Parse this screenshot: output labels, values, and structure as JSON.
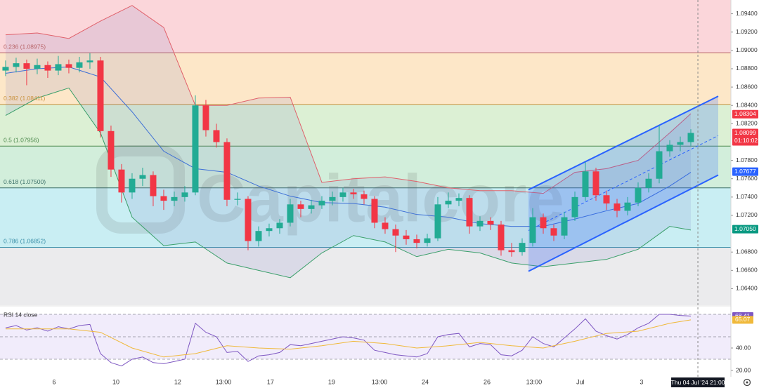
{
  "chart_data": [
    {
      "type": "candlestick",
      "watermark": "Capitalcore",
      "up_color": "#22ab94",
      "down_color": "#f23645",
      "xlim": [
        -0.53,
        68.8
      ],
      "ylim": [
        1.0622,
        1.0955
      ],
      "yticks": [
        {
          "value": 1.094,
          "label": "1.09400"
        },
        {
          "value": 1.092,
          "label": "1.09200"
        },
        {
          "value": 1.09,
          "label": "1.09000"
        },
        {
          "value": 1.088,
          "label": "1.08800"
        },
        {
          "value": 1.086,
          "label": "1.08600"
        },
        {
          "value": 1.084,
          "label": "1.08400"
        },
        {
          "value": 1.082,
          "label": "1.08200"
        },
        {
          "value": 1.078,
          "label": "1.07800"
        },
        {
          "value": 1.076,
          "label": "1.07600"
        },
        {
          "value": 1.074,
          "label": "1.07400"
        },
        {
          "value": 1.072,
          "label": "1.07200"
        },
        {
          "value": 1.068,
          "label": "1.06800"
        },
        {
          "value": 1.066,
          "label": "1.06600"
        },
        {
          "value": 1.064,
          "label": "1.06400"
        }
      ],
      "xticks": [
        {
          "value": 4.6,
          "label": "6"
        },
        {
          "value": 10.47,
          "label": "10"
        },
        {
          "value": 16.33,
          "label": "12"
        },
        {
          "value": 20.67,
          "label": "13:00"
        },
        {
          "value": 25.13,
          "label": "17"
        },
        {
          "value": 30.93,
          "label": "19"
        },
        {
          "value": 35.47,
          "label": "13:00"
        },
        {
          "value": 39.8,
          "label": "24"
        },
        {
          "value": 45.67,
          "label": "26"
        },
        {
          "value": 50.13,
          "label": "13:00"
        },
        {
          "value": 54.53,
          "label": "Jul"
        },
        {
          "value": 60.33,
          "label": "3"
        }
      ],
      "crosshair": {
        "value": 65.67,
        "label": "Thu 04 Jul '24  21:00"
      },
      "fib_levels": [
        {
          "value": 1.08975,
          "label": "0.236 (1.08975)",
          "color": "#b9676b"
        },
        {
          "value": 1.08411,
          "label": "0.382 (1.08411)",
          "color": "#c9923e"
        },
        {
          "value": 1.07956,
          "label": "0.5 (1.07956)",
          "color": "#4e8a4e"
        },
        {
          "value": 1.075,
          "label": "0.618 (1.07500)",
          "color": "#3b6f68"
        },
        {
          "value": 1.06852,
          "label": "0.786 (1.06852)",
          "color": "#3a8fa8"
        }
      ],
      "zone_colors": [
        "#fbd6da",
        "#fde7c8",
        "#dcf0d4",
        "#d2eedb",
        "#c9eef3",
        "#ebebed"
      ],
      "ohlc": [
        [
          1.0878,
          1.0889,
          1.0872,
          1.0882
        ],
        [
          1.0882,
          1.0892,
          1.0876,
          1.0886
        ],
        [
          1.0886,
          1.089,
          1.0862,
          1.088
        ],
        [
          1.088,
          1.0891,
          1.0874,
          1.0884
        ],
        [
          1.0884,
          1.0888,
          1.087,
          1.0878
        ],
        [
          1.0878,
          1.0894,
          1.0873,
          1.0885
        ],
        [
          1.0885,
          1.089,
          1.0875,
          1.0881
        ],
        [
          1.0881,
          1.0893,
          1.0876,
          1.0887
        ],
        [
          1.0887,
          1.0897,
          1.088,
          1.0889
        ],
        [
          1.0889,
          1.0893,
          1.0805,
          1.0812
        ],
        [
          1.0812,
          1.0818,
          1.0762,
          1.077
        ],
        [
          1.077,
          1.0776,
          1.0734,
          1.0745
        ],
        [
          1.0745,
          1.0766,
          1.0738,
          1.076
        ],
        [
          1.076,
          1.0772,
          1.0752,
          1.0764
        ],
        [
          1.0764,
          1.0768,
          1.073,
          1.0741
        ],
        [
          1.0741,
          1.0748,
          1.0726,
          1.0736
        ],
        [
          1.0736,
          1.0746,
          1.073,
          1.074
        ],
        [
          1.074,
          1.0752,
          1.0735,
          1.0745
        ],
        [
          1.0745,
          1.0851,
          1.0742,
          1.084
        ],
        [
          1.084,
          1.0846,
          1.0806,
          1.0813
        ],
        [
          1.0813,
          1.082,
          1.0794,
          1.08
        ],
        [
          1.08,
          1.0804,
          1.073,
          1.0737
        ],
        [
          1.0737,
          1.0745,
          1.0731,
          1.0738
        ],
        [
          1.0738,
          1.0741,
          1.0682,
          1.0692
        ],
        [
          1.0692,
          1.0708,
          1.0686,
          1.0703
        ],
        [
          1.0703,
          1.0711,
          1.0697,
          1.0706
        ],
        [
          1.0706,
          1.0716,
          1.07,
          1.0712
        ],
        [
          1.0712,
          1.0738,
          1.0708,
          1.0732
        ],
        [
          1.0732,
          1.0736,
          1.0718,
          1.0727
        ],
        [
          1.0727,
          1.0737,
          1.0722,
          1.0731
        ],
        [
          1.0731,
          1.0741,
          1.0727,
          1.0736
        ],
        [
          1.0736,
          1.0746,
          1.0731,
          1.074
        ],
        [
          1.074,
          1.075,
          1.0735,
          1.0745
        ],
        [
          1.0745,
          1.0749,
          1.0738,
          1.0743
        ],
        [
          1.0743,
          1.0747,
          1.0732,
          1.0738
        ],
        [
          1.0738,
          1.0741,
          1.0706,
          1.0712
        ],
        [
          1.0712,
          1.0718,
          1.07,
          1.0705
        ],
        [
          1.0705,
          1.071,
          1.068,
          1.0698
        ],
        [
          1.0698,
          1.0704,
          1.0688,
          1.0694
        ],
        [
          1.0694,
          1.0699,
          1.0684,
          1.069
        ],
        [
          1.069,
          1.07,
          1.0686,
          1.0695
        ],
        [
          1.0695,
          1.074,
          1.0692,
          1.0732
        ],
        [
          1.0732,
          1.0745,
          1.0728,
          1.0736
        ],
        [
          1.0736,
          1.0744,
          1.073,
          1.0739
        ],
        [
          1.0739,
          1.0742,
          1.07,
          1.0708
        ],
        [
          1.0708,
          1.0719,
          1.0703,
          1.0714
        ],
        [
          1.0714,
          1.0718,
          1.0704,
          1.071
        ],
        [
          1.071,
          1.0714,
          1.0676,
          1.0682
        ],
        [
          1.0682,
          1.069,
          1.0675,
          1.068
        ],
        [
          1.068,
          1.0695,
          1.0676,
          1.069
        ],
        [
          1.069,
          1.0728,
          1.0686,
          1.0718
        ],
        [
          1.0718,
          1.0722,
          1.07,
          1.0706
        ],
        [
          1.0706,
          1.071,
          1.0692,
          1.0698
        ],
        [
          1.0698,
          1.0724,
          1.0694,
          1.0718
        ],
        [
          1.0718,
          1.0746,
          1.0714,
          1.074
        ],
        [
          1.074,
          1.0778,
          1.0736,
          1.0768
        ],
        [
          1.0768,
          1.0772,
          1.0736,
          1.0742
        ],
        [
          1.0742,
          1.0747,
          1.0726,
          1.0733
        ],
        [
          1.0733,
          1.0738,
          1.0718,
          1.0725
        ],
        [
          1.0725,
          1.074,
          1.072,
          1.0734
        ],
        [
          1.0734,
          1.0756,
          1.073,
          1.075
        ],
        [
          1.075,
          1.0766,
          1.0745,
          1.076
        ],
        [
          1.076,
          1.0818,
          1.0755,
          1.079
        ],
        [
          1.079,
          1.0802,
          1.0784,
          1.0797
        ],
        [
          1.0797,
          1.0806,
          1.079,
          1.08
        ],
        [
          1.08,
          1.0814,
          1.0796,
          1.081
        ]
      ],
      "bands": {
        "x": [
          0,
          3,
          6,
          9,
          12,
          15,
          18,
          21,
          24,
          27,
          30,
          33,
          36,
          39,
          42,
          45,
          48,
          51,
          54,
          57,
          60,
          63,
          65
        ],
        "fill": "rgba(110,110,190,0.13)",
        "series": [
          {
            "color": "#e0606a",
            "values": [
              1.0917,
              1.0919,
              1.0913,
              1.0932,
              1.0949,
              1.0925,
              1.084,
              1.084,
              1.0848,
              1.0849,
              1.0756,
              1.076,
              1.0762,
              1.0757,
              1.075,
              1.0747,
              1.0747,
              1.0744,
              1.0767,
              1.0771,
              1.078,
              1.081,
              1.0831
            ]
          },
          {
            "color": "#3d6fd6",
            "values": [
              1.0875,
              1.088,
              1.0882,
              1.0871,
              1.0833,
              1.079,
              1.0771,
              1.0767,
              1.0752,
              1.0741,
              1.0734,
              1.0733,
              1.0729,
              1.0721,
              1.0718,
              1.0711,
              1.0708,
              1.0708,
              1.0716,
              1.0725,
              1.0733,
              1.0752,
              1.0767
            ]
          },
          {
            "color": "#3a9f6a",
            "values": [
              1.0829,
              1.0848,
              1.0859,
              1.081,
              1.0718,
              1.0687,
              1.0691,
              1.0668,
              1.066,
              1.0652,
              1.0679,
              1.0698,
              1.0691,
              1.0675,
              1.0683,
              1.0679,
              1.0668,
              1.0664,
              1.0668,
              1.0672,
              1.0683,
              1.0708,
              1.0704
            ]
          }
        ]
      },
      "channel": {
        "x": [
          49.6,
          67.6
        ],
        "upper": [
          1.0748,
          1.085
        ],
        "lower": [
          1.0659,
          1.0764
        ],
        "color": "#2962ff"
      },
      "price_badges": [
        {
          "value": 1.08304,
          "label": "1.08304",
          "color": "#f23645"
        },
        {
          "value": 1.08099,
          "label": "1.08099",
          "sublabel": "01:10:02",
          "color": "#f23645"
        },
        {
          "value": 1.07677,
          "label": "1.07677",
          "color": "#2962ff"
        },
        {
          "value": 1.0705,
          "label": "1.07050",
          "color": "#089981"
        }
      ]
    },
    {
      "type": "line",
      "title": "RSI 14 close",
      "xlim": [
        -0.53,
        68.8
      ],
      "ylim": [
        13.75,
        76.25
      ],
      "yticks": [
        {
          "value": 40,
          "label": "40.00"
        },
        {
          "value": 20,
          "label": "20.00"
        }
      ],
      "levels": [
        70,
        50,
        30
      ],
      "band_color": "#f1ecfb",
      "series": [
        {
          "color": "#7e57c2",
          "values": [
            58,
            60,
            56,
            58,
            55,
            59,
            57,
            60,
            61,
            35,
            27,
            24,
            30,
            32,
            27,
            26,
            28,
            30,
            62,
            54,
            50,
            36,
            37,
            28,
            33,
            34,
            36,
            43,
            42,
            44,
            46,
            48,
            50,
            49,
            47,
            38,
            36,
            34,
            33,
            32,
            35,
            50,
            52,
            53,
            41,
            44,
            43,
            34,
            33,
            38,
            50,
            44,
            41,
            49,
            57,
            66,
            55,
            51,
            48,
            52,
            58,
            62,
            70,
            70,
            69,
            68.41
          ]
        },
        {
          "color": "#f0b93a",
          "x": [
            0,
            3,
            6,
            9,
            12,
            15,
            18,
            21,
            24,
            27,
            30,
            33,
            36,
            39,
            42,
            45,
            48,
            51,
            54,
            57,
            60,
            63,
            65
          ],
          "values": [
            57,
            57,
            57,
            54,
            40,
            32,
            35,
            42,
            40,
            39,
            42,
            46,
            44,
            40,
            42,
            45,
            42,
            40,
            46,
            53,
            55,
            62,
            65.07
          ]
        }
      ],
      "badges": [
        {
          "value": 68.41,
          "label": "68.41",
          "color": "#7e57c2"
        },
        {
          "value": 65.07,
          "label": "65.07",
          "color": "#f0b93a"
        }
      ]
    }
  ]
}
